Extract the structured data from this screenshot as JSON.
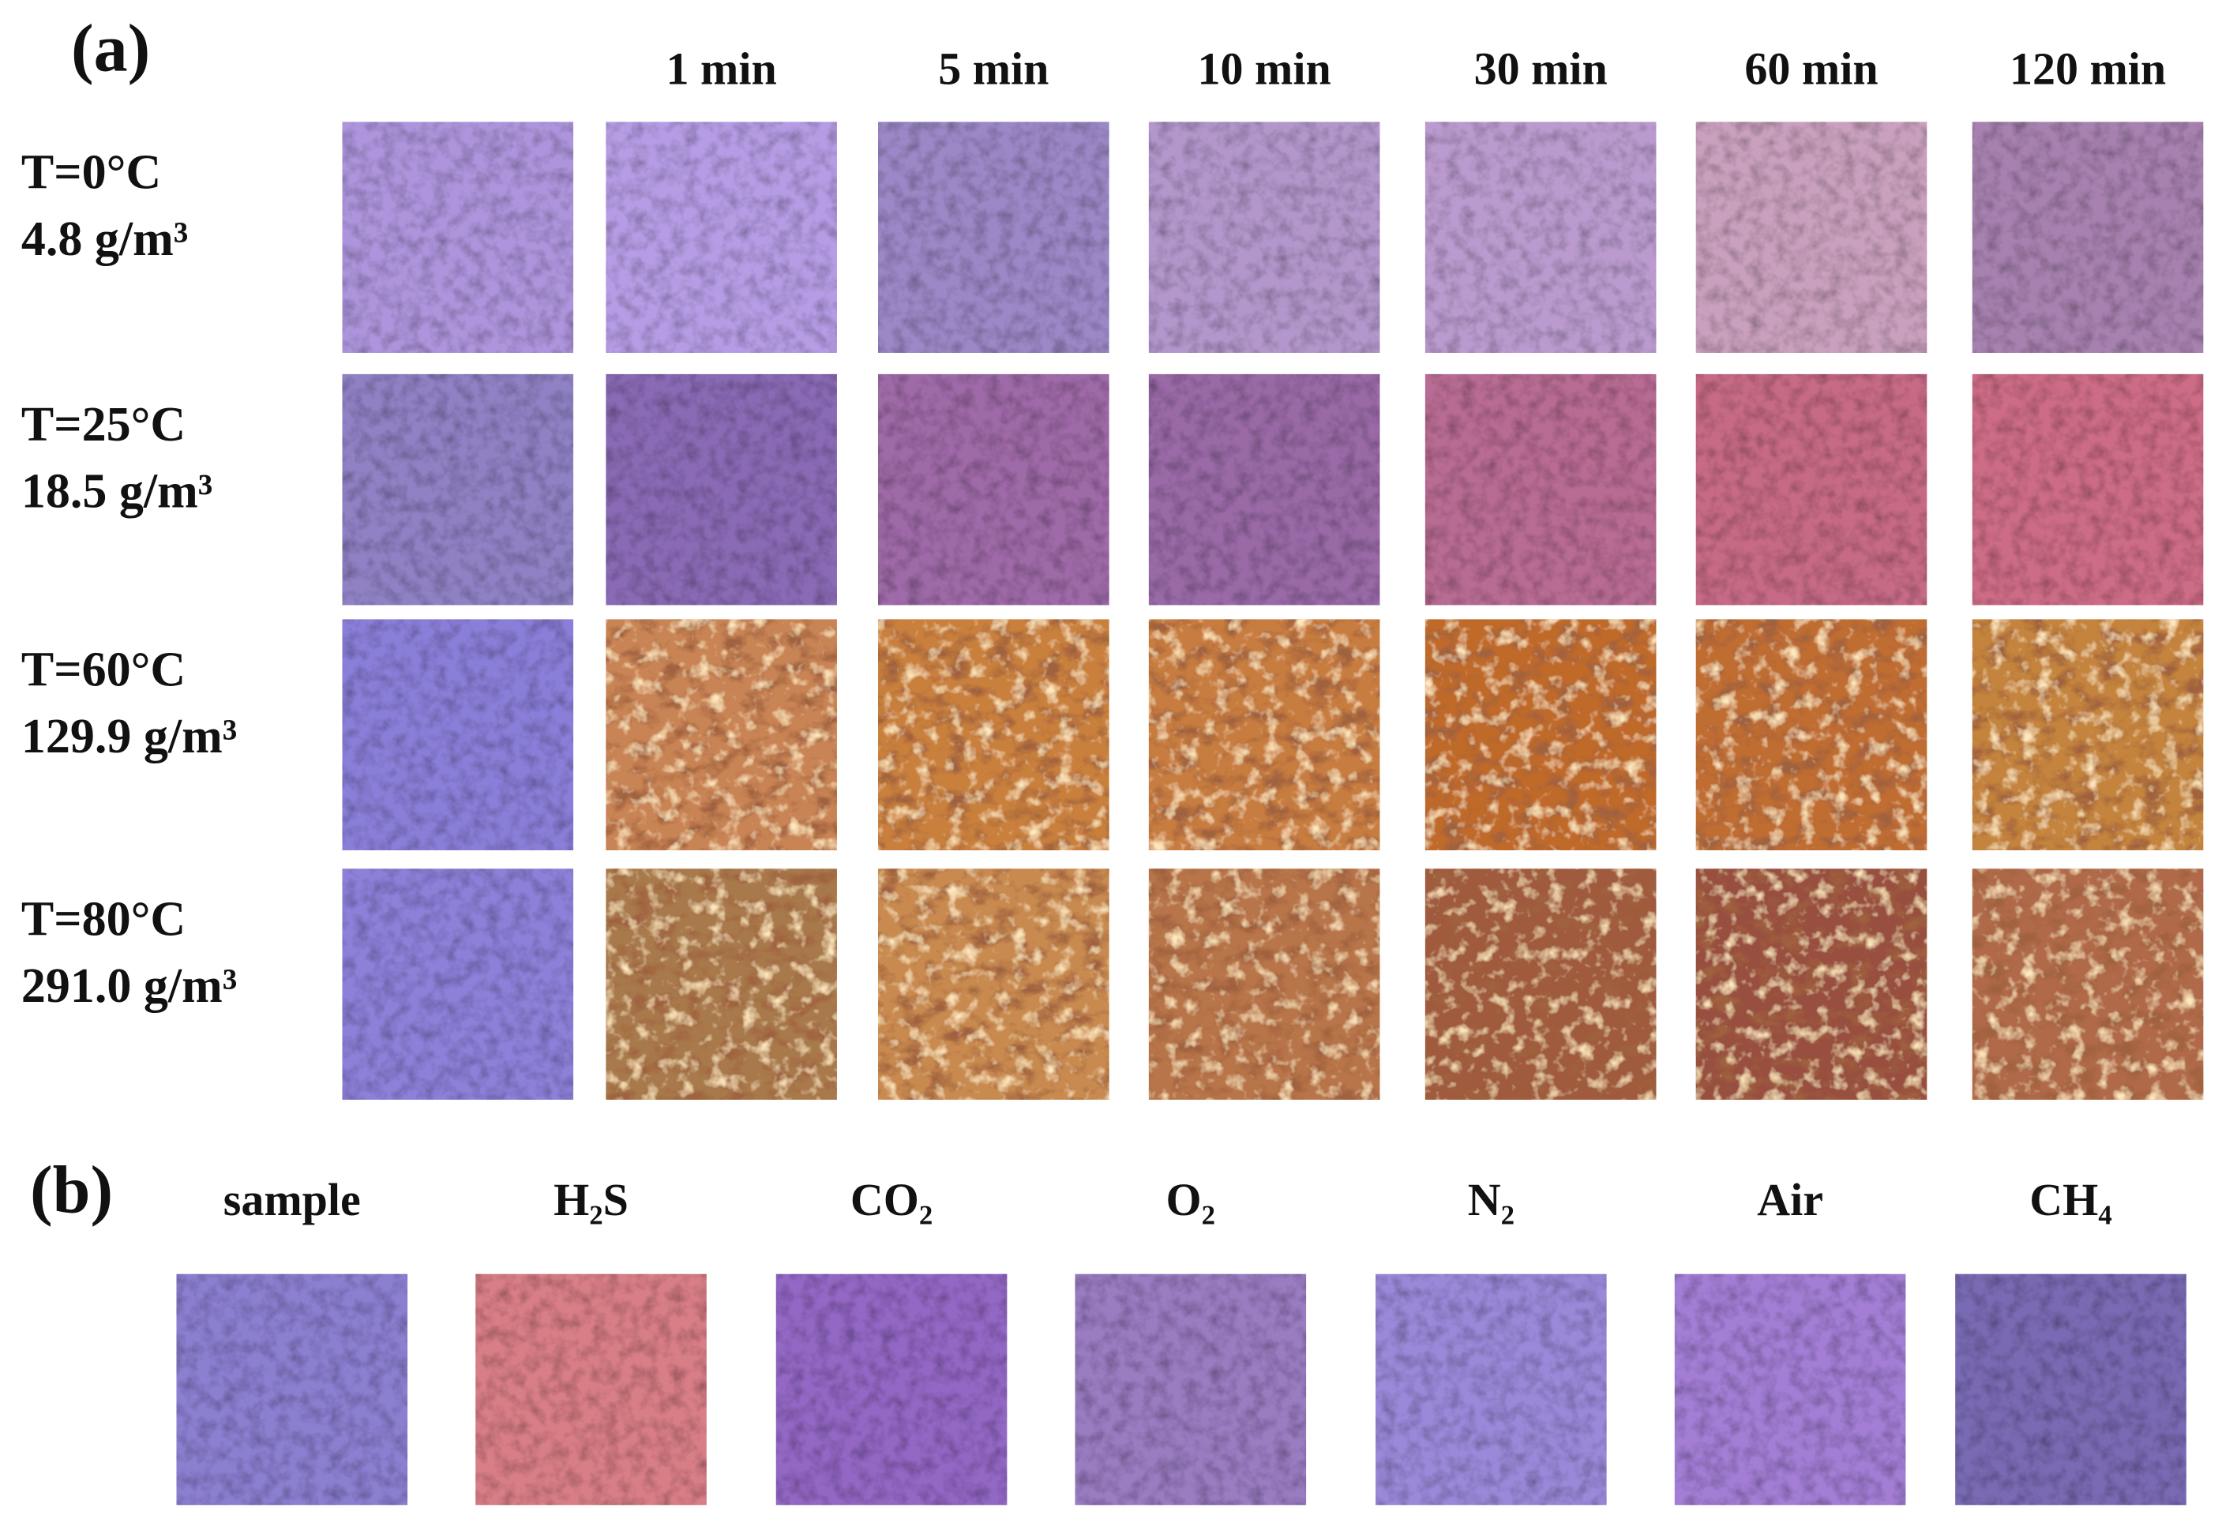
{
  "panel_a": {
    "label": "(a)",
    "columns": [
      "1 min",
      "5 min",
      "10 min",
      "30 min",
      "60 min",
      "120 min"
    ],
    "rows": [
      {
        "temperature": "T=0°C",
        "humidity": "4.8 g/m³"
      },
      {
        "temperature": "T=25°C",
        "humidity": "18.5 g/m³"
      },
      {
        "temperature": "T=60°C",
        "humidity": "129.9 g/m³"
      },
      {
        "temperature": "T=80°C",
        "humidity": "291.0 g/m³"
      }
    ]
  },
  "panel_b": {
    "label": "(b)",
    "columns": [
      "sample",
      "H₂S",
      "CO₂",
      "O₂",
      "N₂",
      "Air",
      "CH₄"
    ]
  }
}
